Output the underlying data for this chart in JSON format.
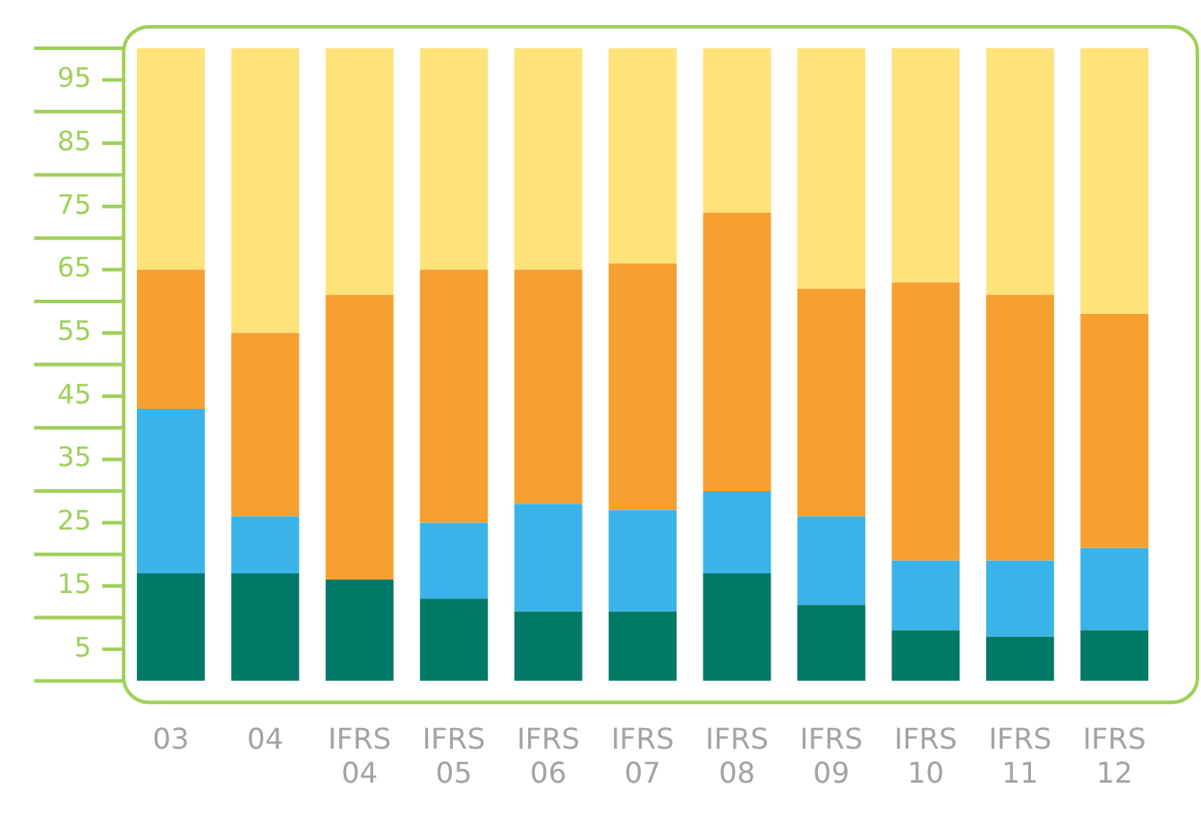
{
  "chart_data": {
    "type": "bar",
    "stacked": true,
    "categories": [
      "03",
      "04",
      "IFRS 04",
      "IFRS 05",
      "IFRS 06",
      "IFRS 07",
      "IFRS 08",
      "IFRS 09",
      "IFRS 10",
      "IFRS 11",
      "IFRS 12"
    ],
    "series": [
      {
        "color": "#007a66",
        "values": [
          17,
          17,
          16,
          13,
          11,
          11,
          17,
          12,
          8,
          7,
          8
        ]
      },
      {
        "color": "#3ab4e8",
        "values": [
          26,
          9,
          0,
          12,
          17,
          16,
          13,
          14,
          11,
          12,
          13
        ]
      },
      {
        "color": "#f5a030",
        "values": [
          22,
          29,
          45,
          40,
          37,
          39,
          44,
          36,
          44,
          42,
          37
        ]
      },
      {
        "color": "#fee27a",
        "values": [
          35,
          45,
          39,
          35,
          35,
          34,
          26,
          38,
          37,
          39,
          42
        ]
      }
    ],
    "ylim": [
      0,
      100
    ],
    "yticks": [
      5,
      15,
      25,
      35,
      45,
      55,
      65,
      75,
      85,
      95
    ],
    "grid": false,
    "legend": false
  }
}
